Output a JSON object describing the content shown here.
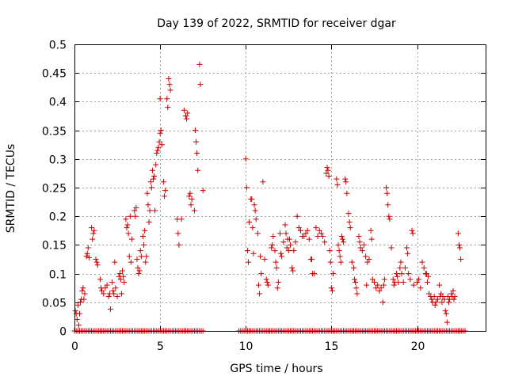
{
  "chart_data": {
    "type": "scatter",
    "title": "Day 139 of 2022, SRMTID for receiver dgar",
    "xlabel": "GPS time / hours",
    "ylabel": "SRMTID / TECUs",
    "xlim": [
      0,
      24
    ],
    "ylim": [
      0,
      0.5
    ],
    "xticks": [
      0,
      5,
      10,
      15,
      20
    ],
    "xtick_labels": [
      "0",
      "5",
      "10",
      "15",
      "20"
    ],
    "yticks": [
      0,
      0.05,
      0.1,
      0.15,
      0.2,
      0.25,
      0.3,
      0.35,
      0.4,
      0.45,
      0.5
    ],
    "ytick_labels": [
      "0",
      "0.05",
      "0.1",
      "0.15",
      "0.2",
      "0.25",
      "0.3",
      "0.35",
      "0.4",
      "0.45",
      "0.5"
    ],
    "grid": true,
    "marker": "plus",
    "color": "#cc0000",
    "series": [
      {
        "name": "SRMTID",
        "points": [
          [
            0.05,
            0.035
          ],
          [
            0.1,
            0.03
          ],
          [
            0.15,
            0.02
          ],
          [
            0.2,
            0.045
          ],
          [
            0.25,
            0.01
          ],
          [
            0.3,
            0.03
          ],
          [
            0.35,
            0.05
          ],
          [
            0.4,
            0.055
          ],
          [
            0.45,
            0.07
          ],
          [
            0.5,
            0.075
          ],
          [
            0.55,
            0.055
          ],
          [
            0.6,
            0.065
          ],
          [
            0.7,
            0.13
          ],
          [
            0.75,
            0.135
          ],
          [
            0.8,
            0.145
          ],
          [
            0.85,
            0.128
          ],
          [
            1.0,
            0.18
          ],
          [
            1.05,
            0.16
          ],
          [
            1.1,
            0.17
          ],
          [
            1.15,
            0.175
          ],
          [
            1.25,
            0.125
          ],
          [
            1.3,
            0.12
          ],
          [
            1.35,
            0.115
          ],
          [
            1.5,
            0.09
          ],
          [
            1.55,
            0.075
          ],
          [
            1.6,
            0.07
          ],
          [
            1.7,
            0.065
          ],
          [
            1.8,
            0.075
          ],
          [
            1.9,
            0.08
          ],
          [
            2.0,
            0.06
          ],
          [
            2.05,
            0.065
          ],
          [
            2.1,
            0.038
          ],
          [
            2.2,
            0.085
          ],
          [
            2.25,
            0.07
          ],
          [
            2.3,
            0.065
          ],
          [
            2.35,
            0.12
          ],
          [
            2.4,
            0.075
          ],
          [
            2.5,
            0.06
          ],
          [
            2.6,
            0.095
          ],
          [
            2.65,
            0.1
          ],
          [
            2.7,
            0.09
          ],
          [
            2.75,
            0.065
          ],
          [
            2.8,
            0.105
          ],
          [
            2.85,
            0.095
          ],
          [
            2.9,
            0.085
          ],
          [
            3.0,
            0.195
          ],
          [
            3.05,
            0.18
          ],
          [
            3.1,
            0.185
          ],
          [
            3.15,
            0.17
          ],
          [
            3.2,
            0.13
          ],
          [
            3.25,
            0.2
          ],
          [
            3.3,
            0.12
          ],
          [
            3.35,
            0.16
          ],
          [
            3.5,
            0.21
          ],
          [
            3.55,
            0.2
          ],
          [
            3.6,
            0.215
          ],
          [
            3.65,
            0.125
          ],
          [
            3.7,
            0.11
          ],
          [
            3.75,
            0.1
          ],
          [
            3.8,
            0.105
          ],
          [
            3.85,
            0.14
          ],
          [
            3.9,
            0.13
          ],
          [
            4.0,
            0.165
          ],
          [
            4.05,
            0.15
          ],
          [
            4.1,
            0.175
          ],
          [
            4.15,
            0.12
          ],
          [
            4.2,
            0.13
          ],
          [
            4.25,
            0.24
          ],
          [
            4.3,
            0.22
          ],
          [
            4.35,
            0.19
          ],
          [
            4.4,
            0.21
          ],
          [
            4.45,
            0.26
          ],
          [
            4.5,
            0.25
          ],
          [
            4.55,
            0.28
          ],
          [
            4.6,
            0.265
          ],
          [
            4.65,
            0.27
          ],
          [
            4.7,
            0.21
          ],
          [
            4.75,
            0.29
          ],
          [
            4.8,
            0.31
          ],
          [
            4.85,
            0.315
          ],
          [
            4.9,
            0.32
          ],
          [
            4.95,
            0.33
          ],
          [
            5.0,
            0.345
          ],
          [
            5.05,
            0.35
          ],
          [
            5.1,
            0.325
          ],
          [
            5.2,
            0.26
          ],
          [
            5.25,
            0.235
          ],
          [
            5.3,
            0.245
          ],
          [
            5.4,
            0.405
          ],
          [
            5.45,
            0.39
          ],
          [
            5.5,
            0.44
          ],
          [
            5.55,
            0.43
          ],
          [
            5.6,
            0.42
          ],
          [
            5.0,
            0.405
          ],
          [
            6.0,
            0.195
          ],
          [
            6.05,
            0.17
          ],
          [
            6.1,
            0.15
          ],
          [
            6.25,
            0.195
          ],
          [
            6.4,
            0.385
          ],
          [
            6.5,
            0.375
          ],
          [
            6.55,
            0.37
          ],
          [
            6.6,
            0.38
          ],
          [
            6.7,
            0.235
          ],
          [
            6.75,
            0.24
          ],
          [
            6.8,
            0.22
          ],
          [
            6.85,
            0.23
          ],
          [
            7.0,
            0.21
          ],
          [
            7.05,
            0.35
          ],
          [
            7.1,
            0.33
          ],
          [
            7.15,
            0.31
          ],
          [
            7.2,
            0.28
          ],
          [
            7.3,
            0.465
          ],
          [
            7.35,
            0.43
          ],
          [
            7.5,
            0.245
          ],
          [
            10.0,
            0.3
          ],
          [
            10.05,
            0.25
          ],
          [
            10.1,
            0.14
          ],
          [
            10.15,
            0.12
          ],
          [
            10.2,
            0.19
          ],
          [
            10.3,
            0.23
          ],
          [
            10.35,
            0.23
          ],
          [
            10.4,
            0.18
          ],
          [
            10.45,
            0.135
          ],
          [
            10.5,
            0.22
          ],
          [
            10.55,
            0.21
          ],
          [
            10.6,
            0.195
          ],
          [
            10.7,
            0.17
          ],
          [
            10.75,
            0.08
          ],
          [
            10.8,
            0.065
          ],
          [
            10.85,
            0.13
          ],
          [
            10.9,
            0.1
          ],
          [
            11.0,
            0.26
          ],
          [
            11.1,
            0.125
          ],
          [
            11.2,
            0.09
          ],
          [
            11.25,
            0.085
          ],
          [
            11.3,
            0.08
          ],
          [
            11.5,
            0.145
          ],
          [
            11.55,
            0.15
          ],
          [
            11.6,
            0.165
          ],
          [
            11.7,
            0.14
          ],
          [
            11.75,
            0.12
          ],
          [
            11.8,
            0.11
          ],
          [
            11.85,
            0.075
          ],
          [
            11.9,
            0.085
          ],
          [
            12.0,
            0.17
          ],
          [
            12.05,
            0.135
          ],
          [
            12.1,
            0.13
          ],
          [
            12.2,
            0.155
          ],
          [
            12.3,
            0.185
          ],
          [
            12.35,
            0.17
          ],
          [
            12.4,
            0.145
          ],
          [
            12.45,
            0.16
          ],
          [
            12.5,
            0.14
          ],
          [
            12.55,
            0.16
          ],
          [
            12.6,
            0.15
          ],
          [
            12.7,
            0.11
          ],
          [
            12.75,
            0.105
          ],
          [
            12.8,
            0.14
          ],
          [
            12.9,
            0.155
          ],
          [
            13.0,
            0.2
          ],
          [
            13.1,
            0.18
          ],
          [
            13.2,
            0.175
          ],
          [
            13.3,
            0.165
          ],
          [
            13.4,
            0.165
          ],
          [
            13.5,
            0.17
          ],
          [
            13.6,
            0.175
          ],
          [
            13.7,
            0.16
          ],
          [
            13.8,
            0.125
          ],
          [
            13.85,
            0.125
          ],
          [
            13.9,
            0.1
          ],
          [
            14.0,
            0.1
          ],
          [
            14.1,
            0.18
          ],
          [
            14.2,
            0.165
          ],
          [
            14.3,
            0.175
          ],
          [
            14.4,
            0.17
          ],
          [
            14.5,
            0.165
          ],
          [
            14.6,
            0.155
          ],
          [
            14.7,
            0.275
          ],
          [
            14.75,
            0.285
          ],
          [
            14.8,
            0.28
          ],
          [
            14.85,
            0.27
          ],
          [
            14.9,
            0.14
          ],
          [
            14.95,
            0.12
          ],
          [
            15.0,
            0.075
          ],
          [
            15.05,
            0.07
          ],
          [
            15.1,
            0.1
          ],
          [
            15.3,
            0.265
          ],
          [
            15.35,
            0.255
          ],
          [
            15.4,
            0.15
          ],
          [
            15.45,
            0.14
          ],
          [
            15.5,
            0.13
          ],
          [
            15.55,
            0.12
          ],
          [
            15.6,
            0.165
          ],
          [
            15.65,
            0.16
          ],
          [
            15.7,
            0.155
          ],
          [
            15.8,
            0.265
          ],
          [
            15.85,
            0.26
          ],
          [
            15.9,
            0.24
          ],
          [
            16.0,
            0.205
          ],
          [
            16.05,
            0.19
          ],
          [
            16.1,
            0.18
          ],
          [
            16.2,
            0.12
          ],
          [
            16.3,
            0.11
          ],
          [
            16.35,
            0.09
          ],
          [
            16.4,
            0.085
          ],
          [
            16.45,
            0.075
          ],
          [
            16.5,
            0.065
          ],
          [
            16.6,
            0.165
          ],
          [
            16.65,
            0.155
          ],
          [
            16.7,
            0.145
          ],
          [
            16.8,
            0.14
          ],
          [
            16.9,
            0.15
          ],
          [
            17.0,
            0.13
          ],
          [
            17.05,
            0.08
          ],
          [
            17.1,
            0.12
          ],
          [
            17.2,
            0.125
          ],
          [
            17.3,
            0.175
          ],
          [
            17.35,
            0.16
          ],
          [
            17.4,
            0.09
          ],
          [
            17.5,
            0.085
          ],
          [
            17.6,
            0.075
          ],
          [
            17.7,
            0.08
          ],
          [
            17.8,
            0.07
          ],
          [
            17.9,
            0.075
          ],
          [
            18.0,
            0.05
          ],
          [
            18.05,
            0.08
          ],
          [
            18.1,
            0.09
          ],
          [
            18.2,
            0.25
          ],
          [
            18.25,
            0.24
          ],
          [
            18.3,
            0.22
          ],
          [
            18.35,
            0.2
          ],
          [
            18.4,
            0.195
          ],
          [
            18.5,
            0.145
          ],
          [
            18.6,
            0.09
          ],
          [
            18.65,
            0.08
          ],
          [
            18.7,
            0.085
          ],
          [
            18.8,
            0.1
          ],
          [
            18.85,
            0.095
          ],
          [
            18.9,
            0.085
          ],
          [
            19.0,
            0.11
          ],
          [
            19.05,
            0.12
          ],
          [
            19.1,
            0.1
          ],
          [
            19.2,
            0.085
          ],
          [
            19.3,
            0.11
          ],
          [
            19.4,
            0.145
          ],
          [
            19.45,
            0.135
          ],
          [
            19.5,
            0.1
          ],
          [
            19.6,
            0.09
          ],
          [
            19.7,
            0.175
          ],
          [
            19.75,
            0.17
          ],
          [
            19.8,
            0.08
          ],
          [
            20.0,
            0.085
          ],
          [
            20.1,
            0.09
          ],
          [
            20.2,
            0.075
          ],
          [
            20.3,
            0.12
          ],
          [
            20.4,
            0.11
          ],
          [
            20.5,
            0.1
          ],
          [
            20.55,
            0.1
          ],
          [
            20.6,
            0.085
          ],
          [
            20.65,
            0.095
          ],
          [
            20.7,
            0.065
          ],
          [
            20.8,
            0.06
          ],
          [
            20.85,
            0.055
          ],
          [
            20.9,
            0.05
          ],
          [
            21.0,
            0.06
          ],
          [
            21.05,
            0.045
          ],
          [
            21.1,
            0.05
          ],
          [
            21.2,
            0.055
          ],
          [
            21.3,
            0.08
          ],
          [
            21.35,
            0.06
          ],
          [
            21.4,
            0.065
          ],
          [
            21.45,
            0.05
          ],
          [
            21.5,
            0.06
          ],
          [
            21.6,
            0.055
          ],
          [
            21.65,
            0.035
          ],
          [
            21.7,
            0.03
          ],
          [
            21.75,
            0.015
          ],
          [
            21.8,
            0.06
          ],
          [
            21.85,
            0.05
          ],
          [
            21.9,
            0.055
          ],
          [
            22.0,
            0.065
          ],
          [
            22.05,
            0.06
          ],
          [
            22.1,
            0.07
          ],
          [
            22.15,
            0.055
          ],
          [
            22.2,
            0.06
          ],
          [
            22.4,
            0.17
          ],
          [
            22.45,
            0.15
          ],
          [
            22.5,
            0.145
          ],
          [
            22.55,
            0.125
          ]
        ]
      }
    ],
    "zero_segments": [
      [
        0.0,
        7.5
      ],
      [
        9.6,
        22.8
      ]
    ]
  }
}
